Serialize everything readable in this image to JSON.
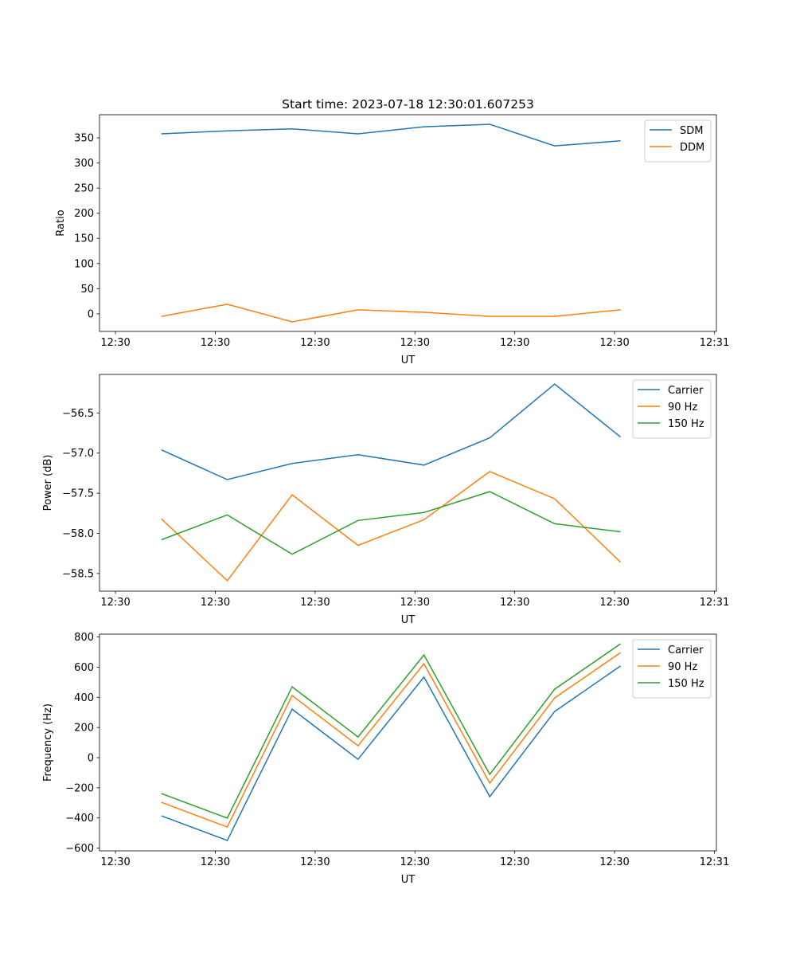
{
  "chart_data": [
    {
      "type": "line",
      "title": "Start time: 2023-07-18 12:30:01.607253",
      "xlabel": "UT",
      "ylabel": "Ratio",
      "x_seconds_after_1230": [
        4.6,
        11.2,
        17.7,
        24.3,
        30.9,
        37.5,
        44.0,
        50.6
      ],
      "xlim": [
        -1.6,
        60.2
      ],
      "xticks": [
        0,
        10,
        20,
        30,
        40,
        50,
        60
      ],
      "xtick_labels": [
        "12:30",
        "12:30",
        "12:30",
        "12:30",
        "12:30",
        "12:30",
        "12:31"
      ],
      "ylim": [
        -35,
        396
      ],
      "yticks": [
        0,
        50,
        100,
        150,
        200,
        250,
        300,
        350
      ],
      "ytick_labels": [
        "0",
        "50",
        "100",
        "150",
        "200",
        "250",
        "300",
        "350"
      ],
      "legend": "top-right",
      "series": [
        {
          "name": "SDM",
          "color": "#1f77b4",
          "values": [
            358,
            364,
            368,
            358,
            372,
            377,
            334,
            344
          ]
        },
        {
          "name": "DDM",
          "color": "#ff7f0e",
          "values": [
            -5,
            19,
            -16,
            8,
            3,
            -5,
            -5,
            8
          ]
        }
      ]
    },
    {
      "type": "line",
      "title": "",
      "xlabel": "UT",
      "ylabel": "Power (dB)",
      "x_seconds_after_1230": [
        4.6,
        11.2,
        17.7,
        24.3,
        30.9,
        37.5,
        44.0,
        50.6
      ],
      "xlim": [
        -1.6,
        60.2
      ],
      "xticks": [
        0,
        10,
        20,
        30,
        40,
        50,
        60
      ],
      "xtick_labels": [
        "12:30",
        "12:30",
        "12:30",
        "12:30",
        "12:30",
        "12:30",
        "12:31"
      ],
      "ylim": [
        -58.72,
        -56.02
      ],
      "yticks": [
        -58.5,
        -58.0,
        -57.5,
        -57.0,
        -56.5
      ],
      "ytick_labels": [
        "−58.5",
        "−58.0",
        "−57.5",
        "−57.0",
        "−56.5"
      ],
      "legend": "top-right",
      "series": [
        {
          "name": "Carrier",
          "color": "#1f77b4",
          "values": [
            -56.96,
            -57.33,
            -57.13,
            -57.02,
            -57.15,
            -56.81,
            -56.14,
            -56.8
          ]
        },
        {
          "name": "90 Hz",
          "color": "#ff7f0e",
          "values": [
            -57.82,
            -58.59,
            -57.52,
            -58.15,
            -57.83,
            -57.23,
            -57.57,
            -58.36
          ]
        },
        {
          "name": "150 Hz",
          "color": "#2ca02c",
          "values": [
            -58.08,
            -57.77,
            -58.26,
            -57.84,
            -57.74,
            -57.48,
            -57.88,
            -57.98
          ]
        }
      ]
    },
    {
      "type": "line",
      "title": "",
      "xlabel": "UT",
      "ylabel": "Frequency (Hz)",
      "x_seconds_after_1230": [
        4.6,
        11.2,
        17.7,
        24.3,
        30.9,
        37.5,
        44.0,
        50.6
      ],
      "xlim": [
        -1.6,
        60.2
      ],
      "xticks": [
        0,
        10,
        20,
        30,
        40,
        50,
        60
      ],
      "xtick_labels": [
        "12:30",
        "12:30",
        "12:30",
        "12:30",
        "12:30",
        "12:30",
        "12:31"
      ],
      "ylim": [
        -618,
        819
      ],
      "yticks": [
        -600,
        -400,
        -200,
        0,
        200,
        400,
        600,
        800
      ],
      "ytick_labels": [
        "−600",
        "−400",
        "−200",
        "0",
        "200",
        "400",
        "600",
        "800"
      ],
      "legend": "top-right",
      "series": [
        {
          "name": "Carrier",
          "color": "#1f77b4",
          "values": [
            -386,
            -549,
            322,
            -11,
            534,
            -259,
            306,
            608
          ]
        },
        {
          "name": "90 Hz",
          "color": "#ff7f0e",
          "values": [
            -296,
            -460,
            412,
            79,
            623,
            -169,
            396,
            697
          ]
        },
        {
          "name": "150 Hz",
          "color": "#2ca02c",
          "values": [
            -238,
            -401,
            470,
            137,
            681,
            -111,
            454,
            755
          ]
        }
      ]
    }
  ]
}
